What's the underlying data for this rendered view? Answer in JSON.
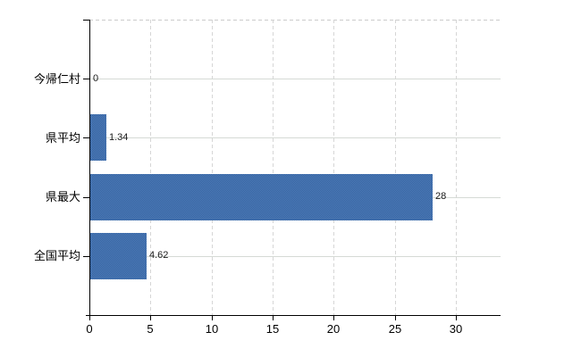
{
  "chart_data": {
    "type": "bar",
    "orientation": "horizontal",
    "title": "",
    "categories": [
      "今帰仁村",
      "県平均",
      "県最大",
      "全国平均"
    ],
    "values": [
      0,
      1.34,
      28,
      4.62
    ],
    "value_labels": [
      "0",
      "1.34",
      "28",
      "4.62"
    ],
    "x_ticks": [
      0,
      5,
      10,
      15,
      20,
      25,
      30
    ],
    "x_tick_labels": [
      "0",
      "5",
      "10",
      "15",
      "20",
      "25",
      "30"
    ],
    "xlim": [
      0,
      33.7
    ],
    "grid": true,
    "legend": false,
    "xlabel": "",
    "ylabel": "",
    "bar_color": "#4270ac",
    "bar_dither_dark": "#36639f",
    "bar_dither_light": "#4e7cba",
    "h_gridline_color": "#d5dad5",
    "v_gridline_color": "#d6d6d6",
    "top_border_color": "#cbcbcb",
    "axis_color": "#000000",
    "label_color": "#1a1a1a",
    "background_color": "#ffffff"
  }
}
